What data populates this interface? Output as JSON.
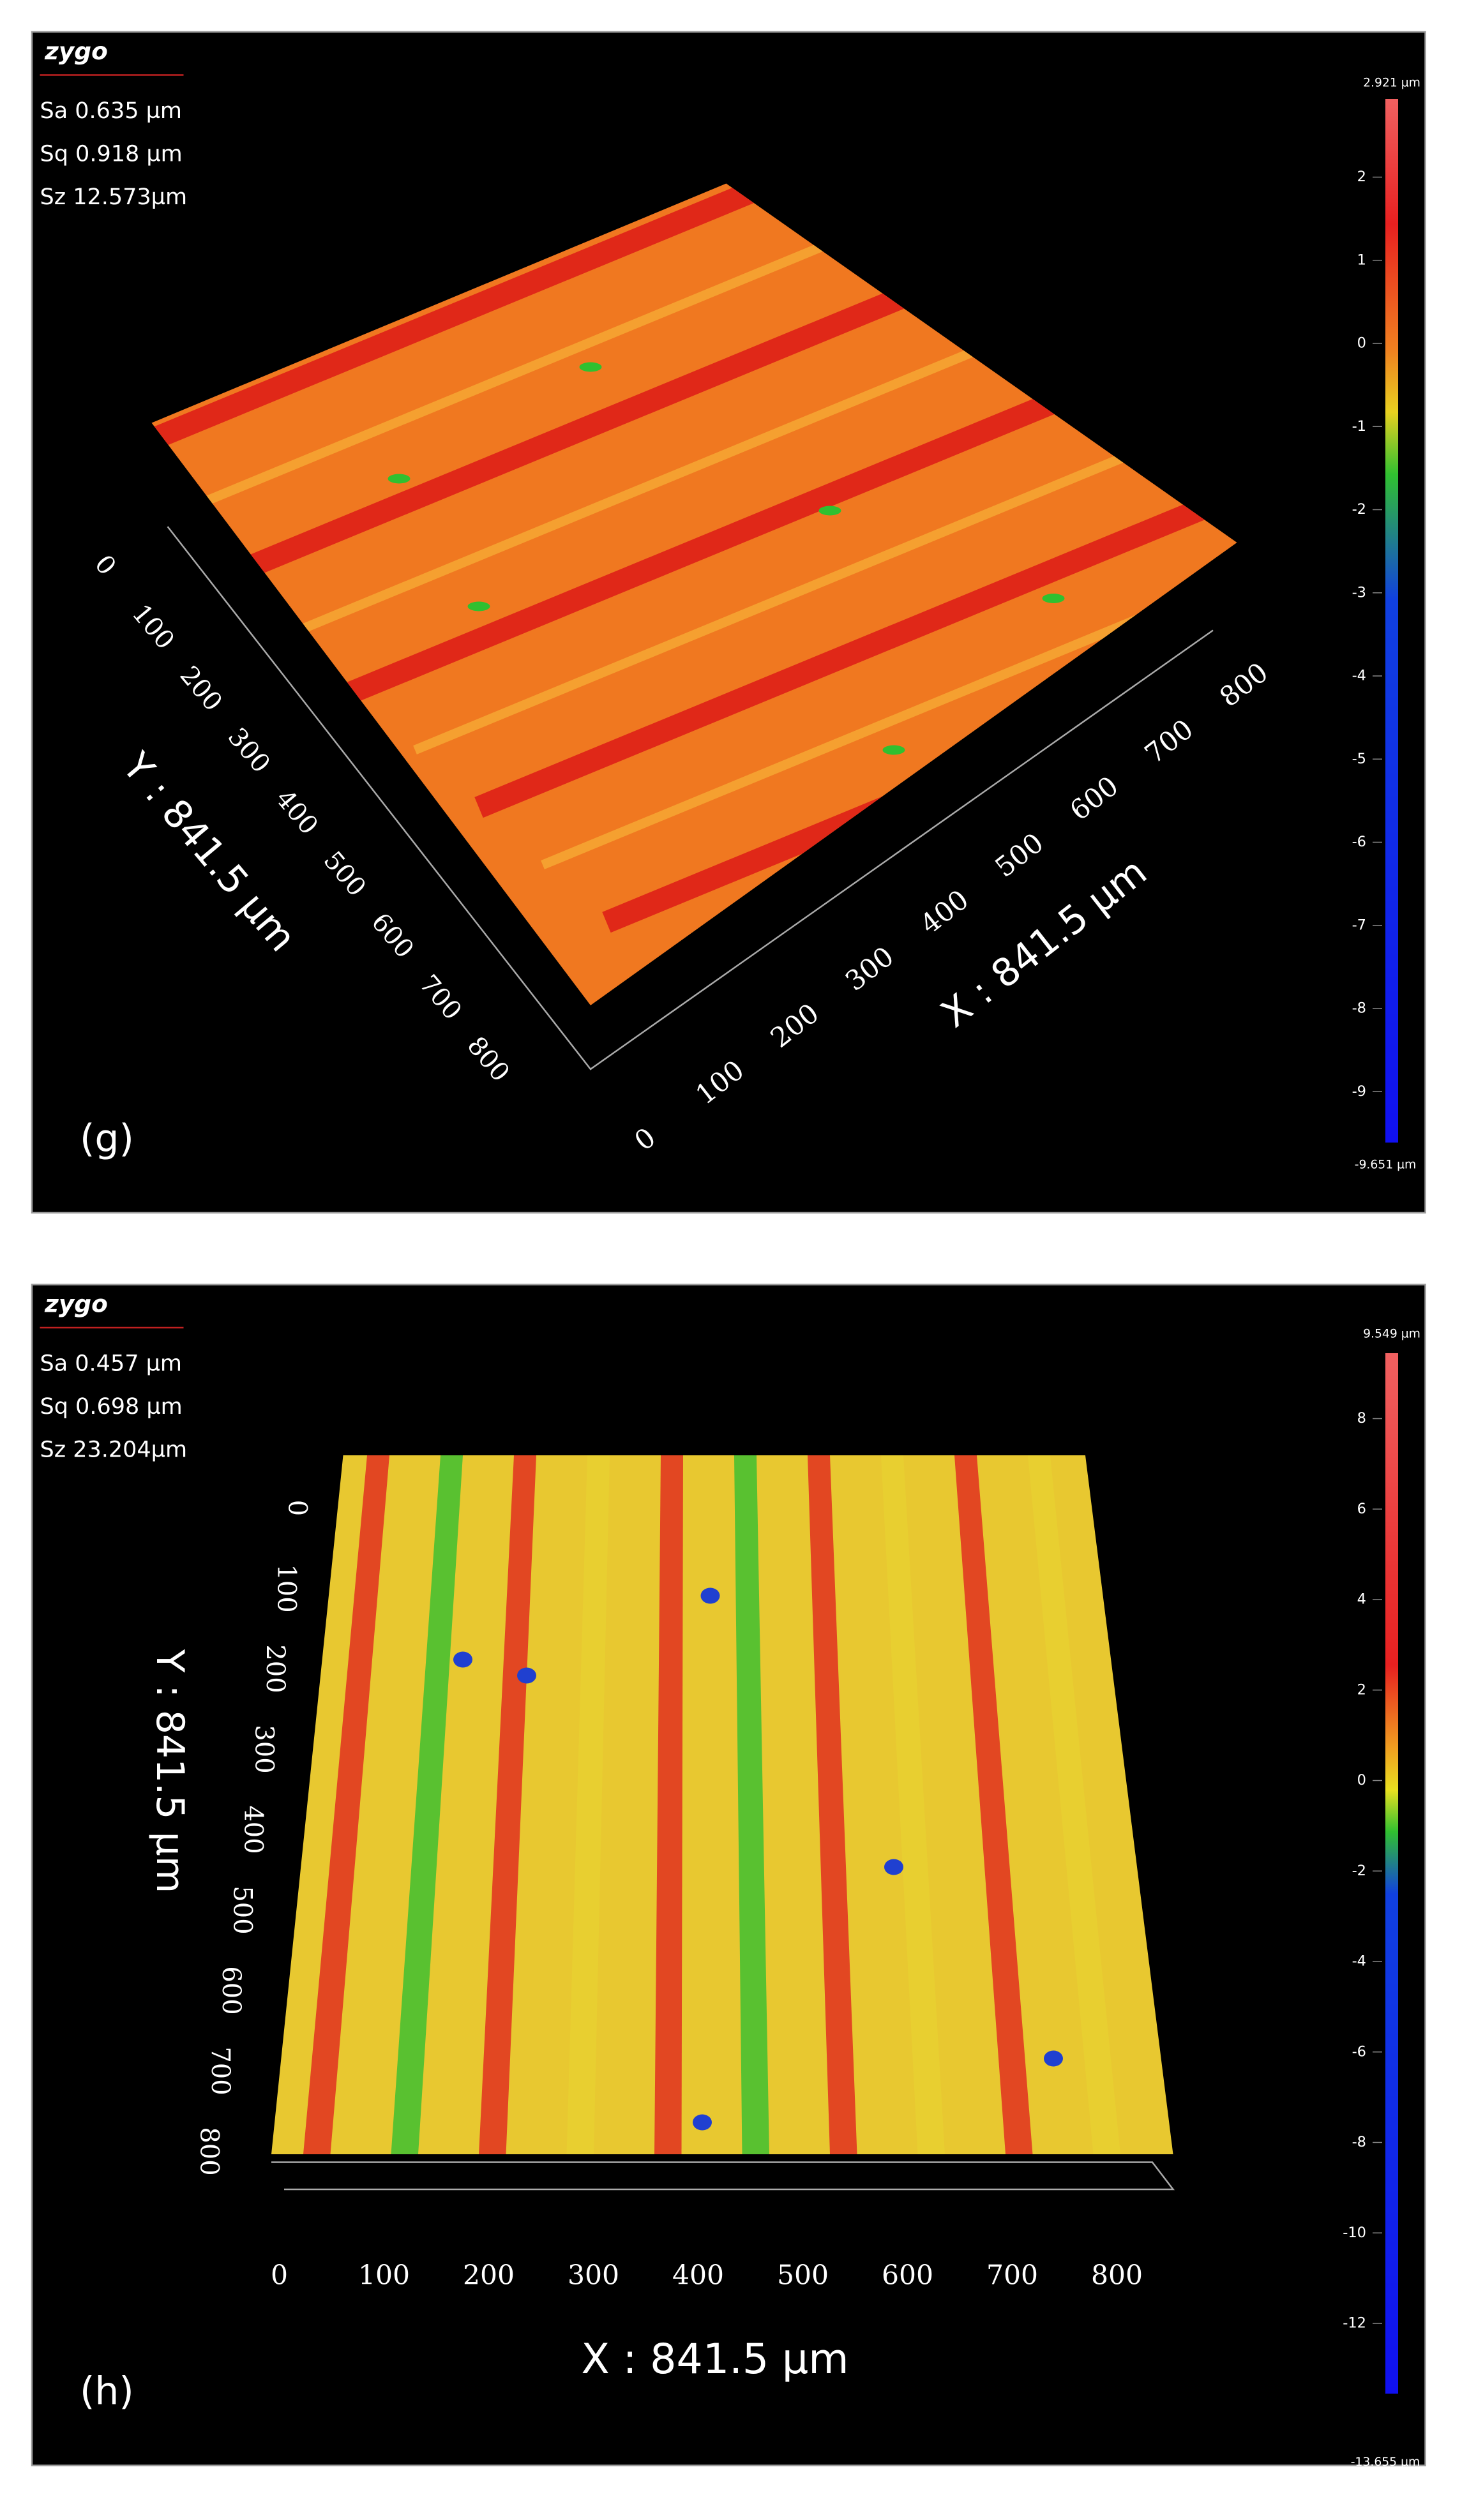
{
  "panels": [
    {
      "label": "(g)",
      "logo": "zygo",
      "stats": [
        "Sa 0.635  µm",
        "Sq 0.918  µm",
        "Sz 12.573µm"
      ],
      "colorbar": {
        "top_label": "2.921 µm",
        "bottom_label": "-9.651 µm",
        "ticks": [
          2,
          1,
          0,
          -1,
          -2,
          -3,
          -4,
          -5,
          -6,
          -7,
          -8,
          -9
        ]
      },
      "x_axis": {
        "title": "X : 841.5 µm",
        "ticks": [
          0,
          100,
          200,
          300,
          400,
          500,
          600,
          700,
          800
        ]
      },
      "y_axis": {
        "title": "Y : 841.5 µm",
        "ticks": [
          0,
          100,
          200,
          300,
          400,
          500,
          600,
          700,
          800
        ]
      }
    },
    {
      "label": "(h)",
      "logo": "zygo",
      "stats": [
        "Sa 0.457  µm",
        "Sq 0.698  µm",
        "Sz 23.204µm"
      ],
      "colorbar": {
        "top_label": "9.549 µm",
        "bottom_label": "-13.655 µm",
        "ticks": [
          8,
          6,
          4,
          2,
          0,
          -2,
          -4,
          -6,
          -8,
          -10,
          -12
        ]
      },
      "x_axis": {
        "title": "X : 841.5 µm",
        "ticks": [
          0,
          100,
          200,
          300,
          400,
          500,
          600,
          700,
          800
        ]
      },
      "y_axis": {
        "title": "Y : 841.5 µm",
        "ticks": [
          0,
          100,
          200,
          300,
          400,
          500,
          600,
          700,
          800
        ]
      }
    }
  ]
}
